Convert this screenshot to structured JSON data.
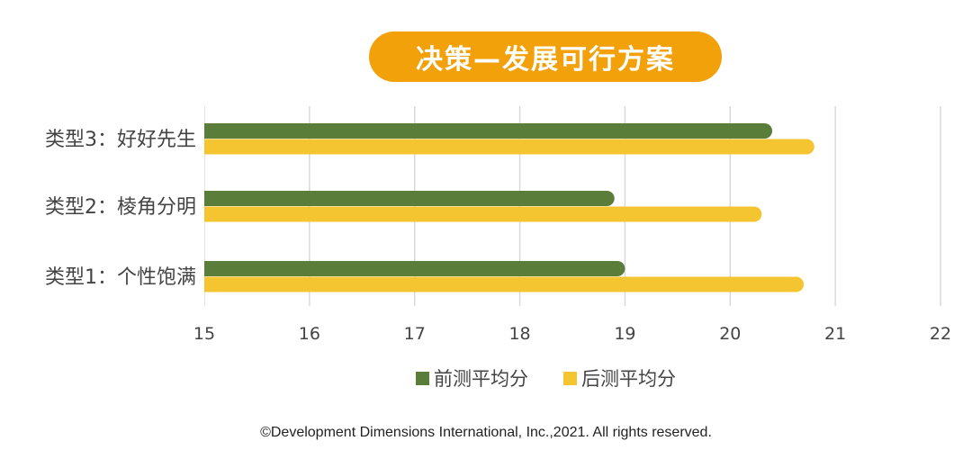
{
  "title": "决策—发展可行方案",
  "chart_data": {
    "type": "bar",
    "orientation": "horizontal",
    "categories": [
      "类型3：好好先生",
      "类型2：棱角分明",
      "类型1：个性饱满"
    ],
    "series": [
      {
        "name": "前测平均分",
        "color": "#5a7d3a",
        "values": [
          20.4,
          18.9,
          19.0
        ]
      },
      {
        "name": "后测平均分",
        "color": "#f4c531",
        "values": [
          20.8,
          20.3,
          20.7
        ]
      }
    ],
    "xlim": [
      15,
      22
    ],
    "xticks": [
      "15",
      "16",
      "17",
      "18",
      "19",
      "20",
      "21",
      "22"
    ],
    "grid": true,
    "legend_position": "bottom"
  },
  "footer": "©Development Dimensions International, Inc.,2021. All rights reserved."
}
